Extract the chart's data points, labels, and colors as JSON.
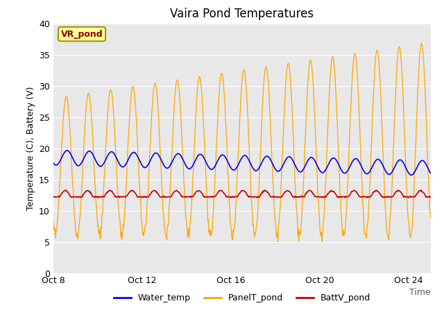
{
  "title": "Vaira Pond Temperatures",
  "xlabel": "Time",
  "ylabel": "Temperature (C), Battery (V)",
  "ylim": [
    0,
    40
  ],
  "yticks": [
    0,
    5,
    10,
    15,
    20,
    25,
    30,
    35,
    40
  ],
  "xtick_labels": [
    "Oct 8",
    "Oct 12",
    "Oct 16",
    "Oct 20",
    "Oct 24"
  ],
  "xtick_pos": [
    0,
    4,
    8,
    12,
    16
  ],
  "xlim": [
    0,
    17
  ],
  "bg_color": "#e8e8e8",
  "fig_color": "#ffffff",
  "water_color": "#0000ff",
  "panel_color": "#FFA500",
  "batt_color": "#cc0000",
  "legend_label": "VR_pond",
  "legend_bg": "#ffff99",
  "legend_edge": "#999900",
  "n_days": 17,
  "samples_per_day": 48,
  "title_fontsize": 12,
  "axis_fontsize": 9,
  "tick_fontsize": 9
}
